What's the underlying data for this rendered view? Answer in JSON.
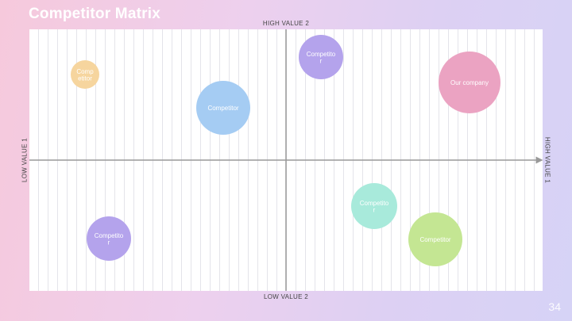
{
  "slide": {
    "title": "Competitor Matrix",
    "page_number": "34"
  },
  "axes": {
    "top": "HIGH VALUE 2",
    "bottom": "LOW VALUE 2",
    "left": "LOW VALUE 1",
    "right": "HIGH VALUE 1"
  },
  "colors": {
    "peach": "#f6d59e",
    "blue": "#a5ccf3",
    "purple": "#b4a3ec",
    "pink": "#eba3c2",
    "mint": "#a8eadb",
    "green": "#c4e693",
    "axis": "#999999"
  },
  "bubbles": [
    {
      "label": [
        "Comp",
        "etitor"
      ],
      "color": "peach"
    },
    {
      "label": [
        "Competitor"
      ],
      "color": "blue"
    },
    {
      "label": [
        "Competito",
        "r"
      ],
      "color": "purple"
    },
    {
      "label": [
        "Our company"
      ],
      "color": "pink"
    },
    {
      "label": [
        "Competito",
        "r"
      ],
      "color": "mint"
    },
    {
      "label": [
        "Competitor"
      ],
      "color": "green"
    },
    {
      "label": [
        "Competito",
        "r"
      ],
      "color": "purple"
    }
  ]
}
